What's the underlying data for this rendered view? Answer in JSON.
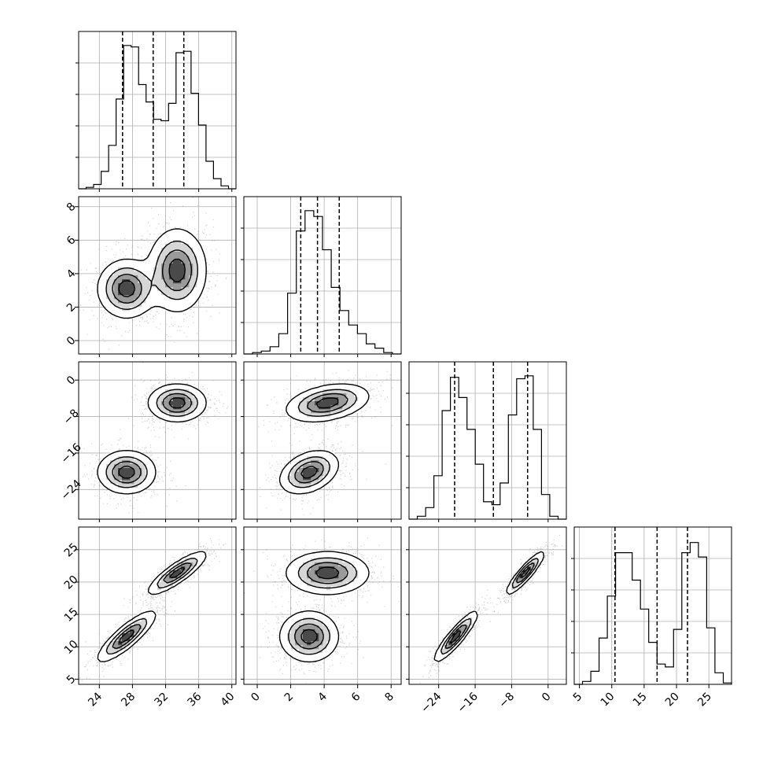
{
  "chart_data": {
    "type": "corner",
    "parameters": 4,
    "grid": true,
    "quantile_lines": "dashed",
    "axis_ranges": [
      [
        21.5,
        40.5
      ],
      [
        -0.8,
        8.6
      ],
      [
        -30.5,
        4.0
      ],
      [
        4.2,
        28.5
      ]
    ],
    "ticks": [
      [
        24,
        28,
        32,
        36,
        40
      ],
      [
        0,
        2,
        4,
        6,
        8
      ],
      [
        -24,
        -16,
        -8,
        0
      ],
      [
        5,
        10,
        15,
        20,
        25
      ]
    ],
    "tick_labels": [
      [
        "24",
        "28",
        "32",
        "36",
        "40"
      ],
      [
        "0",
        "2",
        "4",
        "6",
        "8"
      ],
      [
        "−24",
        "−16",
        "−8",
        "0"
      ],
      [
        "5",
        "10",
        "15",
        "20",
        "25"
      ]
    ],
    "quantiles": [
      [
        26.8,
        30.5,
        34.2
      ],
      [
        2.6,
        3.6,
        4.9
      ],
      [
        -20.5,
        -12.0,
        -4.5
      ],
      [
        10.5,
        17.0,
        21.7
      ]
    ],
    "histograms": [
      [
        0.0,
        0.01,
        0.03,
        0.12,
        0.3,
        0.62,
        0.99,
        0.98,
        0.72,
        0.6,
        0.48,
        0.47,
        0.59,
        0.94,
        0.95,
        0.66,
        0.44,
        0.19,
        0.07,
        0.02,
        0.0
      ],
      [
        0.0,
        0.01,
        0.02,
        0.05,
        0.14,
        0.42,
        0.85,
        0.99,
        0.95,
        0.72,
        0.46,
        0.3,
        0.2,
        0.14,
        0.07,
        0.04,
        0.01,
        0.0
      ],
      [
        0.0,
        0.02,
        0.08,
        0.3,
        0.75,
        0.98,
        0.84,
        0.62,
        0.38,
        0.12,
        0.1,
        0.25,
        0.72,
        0.97,
        0.99,
        0.62,
        0.17,
        0.02,
        0.0
      ],
      [
        0.0,
        0.02,
        0.09,
        0.32,
        0.61,
        0.91,
        0.91,
        0.72,
        0.52,
        0.29,
        0.14,
        0.12,
        0.38,
        0.91,
        0.98,
        0.88,
        0.39,
        0.08,
        0.01
      ]
    ],
    "components": [
      {
        "mean": [
          27.3,
          3.1,
          -20.2,
          11.6
        ],
        "sd": [
          1.7,
          0.85,
          2.3,
          1.9
        ],
        "weight": 0.5
      },
      {
        "mean": [
          33.4,
          4.2,
          -5.0,
          21.4
        ],
        "sd": [
          1.7,
          1.2,
          2.0,
          1.6
        ],
        "weight": 0.5
      }
    ],
    "correlations": {
      "0-3": 0.85,
      "2-3": 0.9,
      "1-2": 0.35,
      "0-1": 0.0,
      "0-2": 0.0,
      "1-3": 0.0
    }
  }
}
